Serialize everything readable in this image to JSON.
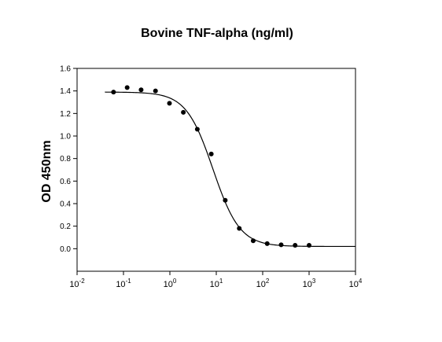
{
  "chart_data": {
    "type": "scatter",
    "title": "Bovine TNF-alpha (ng/ml)",
    "xlabel": "",
    "ylabel": "OD 450nm",
    "x_scale": "log",
    "xlim": [
      0.01,
      10000
    ],
    "ylim": [
      -0.2,
      1.6
    ],
    "x_ticks": [
      {
        "base": "10",
        "exp": "-2"
      },
      {
        "base": "10",
        "exp": "-1"
      },
      {
        "base": "10",
        "exp": "0"
      },
      {
        "base": "10",
        "exp": "1"
      },
      {
        "base": "10",
        "exp": "2"
      },
      {
        "base": "10",
        "exp": "3"
      },
      {
        "base": "10",
        "exp": "4"
      }
    ],
    "y_ticks": [
      "0.0",
      "0.2",
      "0.4",
      "0.6",
      "0.8",
      "1.0",
      "1.2",
      "1.4",
      "1.6"
    ],
    "grid": false,
    "points": {
      "x": [
        0.061,
        0.12,
        0.24,
        0.49,
        0.98,
        1.95,
        3.9,
        7.8,
        15.6,
        31.3,
        62.5,
        125,
        250,
        500,
        1000
      ],
      "y": [
        1.39,
        1.43,
        1.41,
        1.4,
        1.29,
        1.21,
        1.06,
        0.84,
        0.43,
        0.18,
        0.07,
        0.045,
        0.035,
        0.03,
        0.03
      ]
    },
    "fit_curve": {
      "model": "4PL",
      "top": 1.39,
      "bottom": 0.02,
      "ec50": 8.5,
      "hill": 1.5
    }
  }
}
